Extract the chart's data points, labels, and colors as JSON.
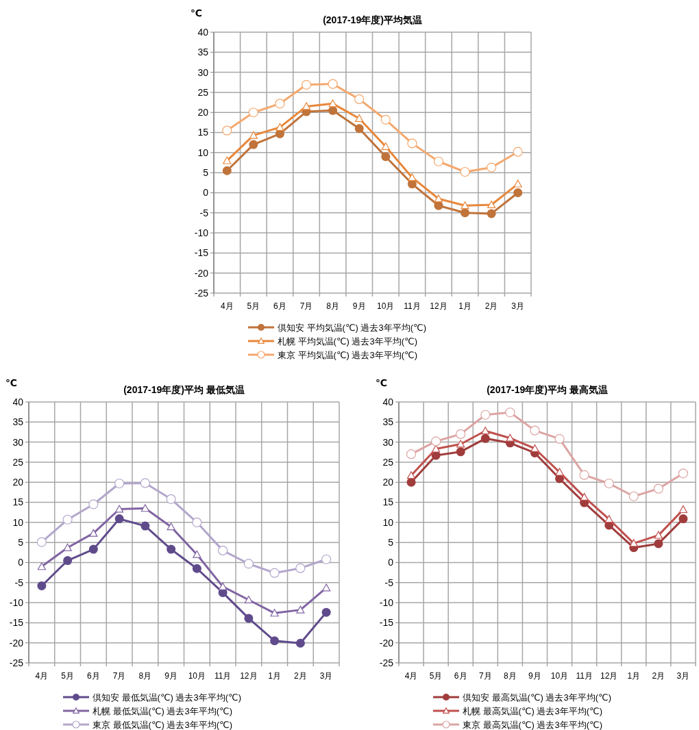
{
  "chart_data": [
    {
      "type": "line",
      "title": "(2017-19年度)平均気温",
      "ylabel": "℃",
      "categories": [
        "4月",
        "5月",
        "6月",
        "7月",
        "8月",
        "9月",
        "10月",
        "11月",
        "12月",
        "1月",
        "2月",
        "3月"
      ],
      "ylim": [
        -25,
        40
      ],
      "yticks": [
        -25,
        -20,
        -15,
        -10,
        -5,
        0,
        5,
        10,
        15,
        20,
        25,
        30,
        35,
        40
      ],
      "grid": true,
      "legend": "bottom",
      "series": [
        {
          "name": "倶知安 平均気温(℃) 過去3年平均(℃)",
          "color": "#c0733a",
          "marker": "circle",
          "values": [
            5.5,
            12,
            14.7,
            20.2,
            20.5,
            16,
            9,
            2.2,
            -3.2,
            -5,
            -5.2,
            0
          ]
        },
        {
          "name": "札幌 平均気温(℃) 過去3年平均(℃)",
          "color": "#e8873a",
          "marker": "triangle",
          "values": [
            8,
            14.3,
            16.3,
            21.5,
            22.2,
            18.5,
            11.5,
            3.8,
            -1.5,
            -3.2,
            -3,
            2.2
          ]
        },
        {
          "name": "東京 平均気温(℃) 過去3年平均(℃)",
          "color": "#f4a86e",
          "marker": "circle",
          "values": [
            15.5,
            20,
            22.2,
            26.9,
            27.1,
            23.3,
            18.2,
            12.3,
            7.8,
            5.2,
            6.3,
            10.2
          ]
        }
      ]
    },
    {
      "type": "line",
      "title": "(2017-19年度)平均  最低気温",
      "ylabel": "℃",
      "categories": [
        "4月",
        "5月",
        "6月",
        "7月",
        "8月",
        "9月",
        "10月",
        "11月",
        "12月",
        "1月",
        "2月",
        "3月"
      ],
      "ylim": [
        -25,
        40
      ],
      "yticks": [
        -25,
        -20,
        -15,
        -10,
        -5,
        0,
        5,
        10,
        15,
        20,
        25,
        30,
        35,
        40
      ],
      "grid": true,
      "legend": "bottom",
      "series": [
        {
          "name": "倶知安 最低気温(℃) 過去3年平均(℃)",
          "color": "#5f4b8b",
          "marker": "circle",
          "values": [
            -5.8,
            0.5,
            3.3,
            10.9,
            9.1,
            3.3,
            -1.5,
            -7.5,
            -13.9,
            -19.5,
            -20.1,
            -12.4
          ]
        },
        {
          "name": "札幌 最低気温(℃) 過去3年平均(℃)",
          "color": "#8064a2",
          "marker": "triangle",
          "values": [
            -1,
            3.7,
            7.3,
            13.3,
            13.5,
            8.9,
            2,
            -6,
            -9.3,
            -12.6,
            -11.8,
            -6.3
          ]
        },
        {
          "name": "東京 最低気温(℃) 過去3年平均(℃)",
          "color": "#b3a6cc",
          "marker": "circle",
          "values": [
            5.1,
            10.7,
            14.5,
            19.7,
            19.8,
            15.8,
            10,
            3,
            -0.3,
            -2.6,
            -1.4,
            0.8
          ]
        }
      ]
    },
    {
      "type": "line",
      "title": "(2017-19年度)平均  最高気温",
      "ylabel": "℃",
      "categories": [
        "4月",
        "5月",
        "6月",
        "7月",
        "8月",
        "9月",
        "10月",
        "11月",
        "12月",
        "1月",
        "2月",
        "3月"
      ],
      "ylim": [
        -25,
        40
      ],
      "yticks": [
        -25,
        -20,
        -15,
        -10,
        -5,
        0,
        5,
        10,
        15,
        20,
        25,
        30,
        35,
        40
      ],
      "grid": true,
      "legend": "bottom",
      "series": [
        {
          "name": "倶知安 最高気温(℃) 過去3年平均(℃)",
          "color": "#a03c3c",
          "marker": "circle",
          "values": [
            20,
            26.7,
            27.6,
            30.9,
            29.8,
            27.3,
            20.9,
            14.9,
            9.3,
            3.7,
            4.7,
            10.9
          ]
        },
        {
          "name": "札幌 最高気温(℃) 過去3年平均(℃)",
          "color": "#c0504d",
          "marker": "triangle",
          "values": [
            21.7,
            28.3,
            29.5,
            32.8,
            31,
            28.4,
            22.5,
            16.3,
            10.8,
            4.8,
            6.8,
            13.2
          ]
        },
        {
          "name": "東京 最高気温(℃) 過去3年平均(℃)",
          "color": "#dca4a3",
          "marker": "circle",
          "values": [
            27,
            30.2,
            32,
            36.8,
            37.4,
            32.9,
            30.8,
            21.8,
            19.7,
            16.5,
            18.4,
            22.2
          ]
        }
      ]
    }
  ]
}
